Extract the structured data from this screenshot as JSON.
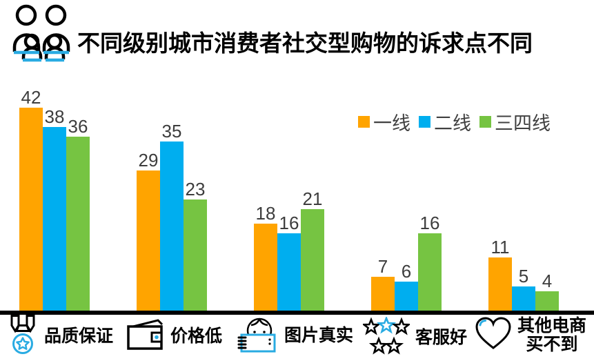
{
  "header": {
    "icon": "people-group-icon",
    "title": "不同级别城市消费者社交型购物的诉求点不同"
  },
  "colors": {
    "tier1_orange": "#FFA400",
    "tier2_blue": "#00AEEF",
    "tier34_green": "#76C442",
    "value_label_gray": "#3D3D3D",
    "legend_text_gray": "#404040",
    "axis_black": "#000000",
    "icon_accent_blue": "#29ABE2"
  },
  "legend": {
    "position": "top-right",
    "items": [
      {
        "label": "一线",
        "color": "#FFA400"
      },
      {
        "label": "二线",
        "color": "#00AEEF"
      },
      {
        "label": "三四线",
        "color": "#76C442"
      }
    ]
  },
  "chart_data": {
    "type": "bar",
    "title": "不同级别城市消费者社交型购物的诉求点不同",
    "categories": [
      "品质保证",
      "价格低",
      "图片真实",
      "客服好",
      "其他电商买不到"
    ],
    "series": [
      {
        "name": "一线",
        "color": "#FFA400",
        "values": [
          42,
          29,
          18,
          7,
          11
        ]
      },
      {
        "name": "二线",
        "color": "#00AEEF",
        "values": [
          38,
          35,
          16,
          6,
          5
        ]
      },
      {
        "name": "三四线",
        "color": "#76C442",
        "values": [
          36,
          23,
          21,
          16,
          4
        ]
      }
    ],
    "ylim": [
      0,
      45
    ],
    "value_labels_shown": true,
    "grid": false,
    "y_axis_shown": false,
    "x_axis_line": "thick-black",
    "legend_position": "top-right"
  },
  "categories": [
    {
      "icon": "medal-icon",
      "label": "品质保证"
    },
    {
      "icon": "wallet-icon",
      "label": "价格低"
    },
    {
      "icon": "photo-person-icon",
      "label": "图片真实"
    },
    {
      "icon": "stars-icon",
      "label": "客服好"
    },
    {
      "icon": "heart-icon",
      "label": "其他电商",
      "label_line2": "买不到"
    }
  ]
}
